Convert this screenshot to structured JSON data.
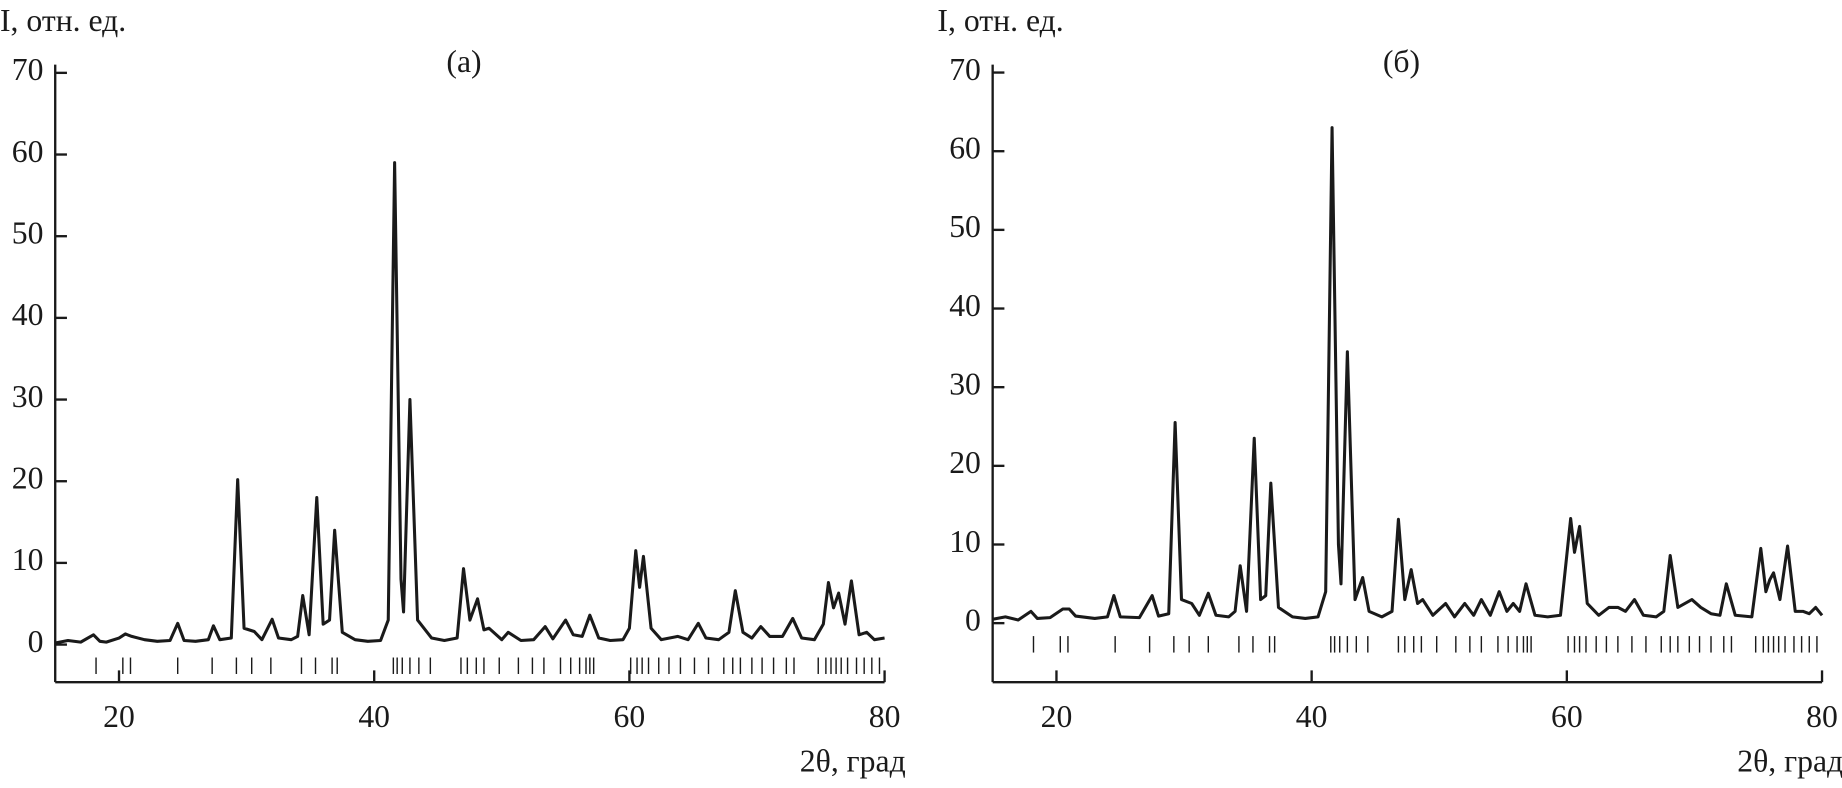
{
  "chart_data": [
    {
      "type": "line",
      "title": "(а)",
      "y_label": "I, отн. ед.",
      "x_label": "2θ, град",
      "color": "#1a1a1a",
      "xlim": [
        15,
        80
      ],
      "ylim": [
        -4.6,
        71
      ],
      "xticks": [
        20,
        40,
        60,
        80
      ],
      "yticks": [
        0,
        10,
        20,
        30,
        40,
        50,
        60,
        70
      ],
      "x": [
        15,
        16,
        17,
        18,
        18.5,
        19,
        20,
        20.5,
        21,
        22,
        23,
        24,
        24.6,
        25.1,
        26,
        27,
        27.4,
        27.9,
        28.8,
        29.3,
        29.8,
        30.6,
        31.2,
        32,
        32.5,
        33.5,
        34,
        34.4,
        34.9,
        35.5,
        36,
        36.5,
        36.9,
        37.5,
        38.5,
        39.5,
        40.5,
        41.1,
        41.6,
        42.1,
        42.3,
        42.8,
        43.4,
        44.5,
        45.5,
        46.5,
        47,
        47.5,
        48.1,
        48.6,
        49,
        50,
        50.5,
        51.5,
        52.5,
        53.4,
        54,
        55,
        55.6,
        56.3,
        56.9,
        57.6,
        58.5,
        59.5,
        60,
        60.5,
        60.8,
        61.1,
        61.7,
        62.5,
        63.8,
        64.6,
        65.4,
        66,
        67,
        67.8,
        68.3,
        68.9,
        69.6,
        70.3,
        71,
        72,
        72.8,
        73.5,
        74.5,
        75.2,
        75.6,
        76,
        76.4,
        76.9,
        77.4,
        78,
        78.6,
        79.2,
        80
      ],
      "values": [
        0.2,
        0.5,
        0.3,
        1.2,
        0.4,
        0.3,
        0.8,
        1.3,
        1.0,
        0.6,
        0.4,
        0.5,
        2.6,
        0.5,
        0.4,
        0.6,
        2.3,
        0.6,
        0.8,
        20.2,
        2,
        1.6,
        0.6,
        3.1,
        0.8,
        0.6,
        1,
        6,
        1.2,
        18,
        2.5,
        3,
        14,
        1.5,
        0.6,
        0.4,
        0.5,
        3,
        59,
        8,
        4,
        30,
        3,
        0.8,
        0.5,
        0.8,
        9.3,
        3,
        5.6,
        1.8,
        2,
        0.6,
        1.5,
        0.5,
        0.6,
        2.2,
        0.7,
        3,
        1.2,
        1,
        3.6,
        0.8,
        0.5,
        0.6,
        2,
        11.5,
        7,
        10.8,
        2,
        0.6,
        1,
        0.6,
        2.6,
        0.8,
        0.6,
        1.5,
        6.6,
        1.5,
        0.8,
        2.2,
        1,
        1,
        3.2,
        0.8,
        0.6,
        2.5,
        7.6,
        4.5,
        6.3,
        2.5,
        7.8,
        1.2,
        1.5,
        0.6,
        0.8
      ],
      "reflections": [
        18.2,
        20.3,
        20.9,
        24.6,
        27.3,
        29.2,
        30.4,
        31.9,
        34.3,
        35.4,
        36.7,
        37.1,
        41.5,
        41.8,
        42.2,
        42.8,
        43.5,
        44.4,
        46.8,
        47.3,
        48.0,
        48.6,
        49.8,
        51.3,
        52.4,
        53.3,
        54.6,
        55.4,
        56.1,
        56.6,
        56.9,
        57.2,
        60.1,
        60.6,
        61.0,
        61.5,
        62.3,
        63.1,
        64.0,
        65.1,
        66.2,
        67.4,
        68.1,
        68.7,
        69.6,
        70.4,
        71.3,
        72.3,
        72.9,
        74.8,
        75.4,
        75.8,
        76.2,
        76.6,
        77.1,
        77.8,
        78.4,
        79.0,
        79.6
      ]
    },
    {
      "type": "line",
      "title": "(б)",
      "y_label": "I, отн. ед.",
      "x_label": "2θ, град",
      "color": "#1a1a1a",
      "xlim": [
        15,
        80
      ],
      "ylim": [
        -7.5,
        71
      ],
      "xticks": [
        20,
        40,
        60,
        80
      ],
      "yticks": [
        0,
        10,
        20,
        30,
        40,
        50,
        60,
        70
      ],
      "x": [
        15,
        16,
        17,
        18,
        18.5,
        19.5,
        20.5,
        21,
        21.5,
        23,
        24,
        24.5,
        25,
        26.5,
        27.5,
        28,
        28.8,
        29.3,
        29.8,
        30.6,
        31.2,
        31.9,
        32.5,
        33.5,
        34,
        34.4,
        34.9,
        35.5,
        36,
        36.4,
        36.8,
        37.4,
        38.5,
        39.5,
        40.5,
        41.1,
        41.6,
        42.1,
        42.3,
        42.8,
        43.4,
        44,
        44.5,
        45.5,
        46.3,
        46.8,
        47.3,
        47.8,
        48.3,
        48.7,
        49.5,
        50.5,
        51.2,
        52,
        52.7,
        53.3,
        54,
        54.7,
        55.3,
        55.8,
        56.3,
        56.8,
        57.5,
        58.5,
        59.5,
        60.3,
        60.6,
        61,
        61.6,
        62.5,
        63.3,
        64,
        64.6,
        65.3,
        66,
        67,
        67.6,
        68.1,
        68.7,
        69.8,
        70.5,
        71.3,
        72,
        72.5,
        73.2,
        74.5,
        75.2,
        75.6,
        75.9,
        76.2,
        76.7,
        77.3,
        77.9,
        78.5,
        79,
        79.5,
        80
      ],
      "values": [
        0.5,
        0.8,
        0.4,
        1.5,
        0.6,
        0.7,
        1.8,
        1.8,
        0.9,
        0.6,
        0.8,
        3.5,
        0.8,
        0.7,
        3.5,
        0.9,
        1.2,
        25.5,
        3,
        2.5,
        1,
        3.8,
        1,
        0.8,
        1.5,
        7.3,
        1.5,
        23.5,
        3,
        3.5,
        17.8,
        2,
        0.8,
        0.6,
        0.8,
        4,
        63,
        10,
        5,
        34.5,
        3,
        5.8,
        1.5,
        0.8,
        1.5,
        13.2,
        3,
        6.8,
        2.5,
        3,
        1,
        2.5,
        0.8,
        2.5,
        1,
        3,
        1,
        4,
        1.5,
        2.5,
        1.5,
        5,
        1,
        0.8,
        1,
        13.3,
        9,
        12.3,
        2.5,
        1,
        2,
        2,
        1.5,
        3,
        1,
        0.8,
        1.5,
        8.6,
        2,
        3,
        2,
        1.2,
        1,
        5,
        1,
        0.8,
        9.5,
        4,
        5.5,
        6.4,
        3,
        9.8,
        1.5,
        1.5,
        1.2,
        2,
        1
      ],
      "reflections": [
        18.2,
        20.3,
        20.9,
        24.6,
        27.3,
        29.2,
        30.4,
        31.9,
        34.3,
        35.4,
        36.7,
        37.1,
        41.5,
        41.8,
        42.2,
        42.8,
        43.5,
        44.4,
        46.8,
        47.3,
        48.0,
        48.6,
        49.8,
        51.3,
        52.4,
        53.3,
        54.6,
        55.4,
        56.1,
        56.6,
        56.9,
        57.2,
        60.1,
        60.6,
        61.0,
        61.5,
        62.3,
        63.1,
        64.0,
        65.1,
        66.2,
        67.4,
        68.1,
        68.7,
        69.6,
        70.4,
        71.3,
        72.3,
        72.9,
        74.8,
        75.4,
        75.8,
        76.2,
        76.6,
        77.1,
        77.8,
        78.4,
        79.0,
        79.6
      ]
    }
  ]
}
